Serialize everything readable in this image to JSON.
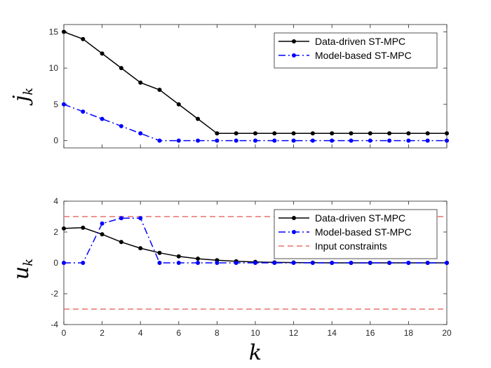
{
  "chart_data": [
    {
      "type": "line",
      "ylabel": "j",
      "ylabel_sub": "k",
      "xlim": [
        0,
        20
      ],
      "ylim": [
        -1,
        16
      ],
      "yticks": [
        0,
        5,
        10,
        15
      ],
      "yticklabels": [
        "0",
        "5",
        "10",
        "15"
      ],
      "xticks": [
        0,
        2,
        4,
        6,
        8,
        10,
        12,
        14,
        16,
        18,
        20
      ],
      "show_xticklabels": false,
      "grid": false,
      "legend_position": "top-right",
      "x": [
        0,
        1,
        2,
        3,
        4,
        5,
        6,
        7,
        8,
        9,
        10,
        11,
        12,
        13,
        14,
        15,
        16,
        17,
        18,
        19,
        20
      ],
      "series": [
        {
          "name": "Data-driven ST-MPC",
          "color": "#000000",
          "dash": "solid",
          "values": [
            15,
            14,
            12,
            10,
            8,
            7,
            5,
            3,
            1,
            1,
            1,
            1,
            1,
            1,
            1,
            1,
            1,
            1,
            1,
            1,
            1
          ]
        },
        {
          "name": "Model-based ST-MPC",
          "color": "#0000ff",
          "dash": "dashdot",
          "values": [
            5,
            4,
            3,
            2,
            1,
            0,
            0,
            0,
            0,
            0,
            0,
            0,
            0,
            0,
            0,
            0,
            0,
            0,
            0,
            0,
            0
          ]
        }
      ]
    },
    {
      "type": "line",
      "ylabel": "u",
      "ylabel_sub": "k",
      "xlabel": "k",
      "xlim": [
        0,
        20
      ],
      "ylim": [
        -4,
        4
      ],
      "yticks": [
        -4,
        -2,
        0,
        2,
        4
      ],
      "yticklabels": [
        "-4",
        "-2",
        "0",
        "2",
        "4"
      ],
      "xticks": [
        0,
        2,
        4,
        6,
        8,
        10,
        12,
        14,
        16,
        18,
        20
      ],
      "xticklabels": [
        "0",
        "2",
        "4",
        "6",
        "8",
        "10",
        "12",
        "14",
        "16",
        "18",
        "20"
      ],
      "show_xticklabels": true,
      "grid": false,
      "legend_position": "top-right",
      "x": [
        0,
        1,
        2,
        3,
        4,
        5,
        6,
        7,
        8,
        9,
        10,
        11,
        12,
        13,
        14,
        15,
        16,
        17,
        18,
        19,
        20
      ],
      "series": [
        {
          "name": "Data-driven ST-MPC",
          "color": "#000000",
          "dash": "solid",
          "values": [
            2.23,
            2.28,
            1.85,
            1.35,
            0.95,
            0.65,
            0.42,
            0.27,
            0.17,
            0.1,
            0.06,
            0.03,
            0.02,
            0.01,
            0.0,
            0.0,
            0.0,
            0.0,
            0.0,
            0.0,
            0.0
          ]
        },
        {
          "name": "Model-based ST-MPC",
          "color": "#0000ff",
          "dash": "dashdot",
          "values": [
            0,
            0,
            2.55,
            2.9,
            2.9,
            0,
            0,
            0,
            0,
            0,
            0,
            0,
            0,
            0,
            0,
            0,
            0,
            0,
            0,
            0,
            0
          ]
        }
      ],
      "constraint_lines": {
        "name": "Input constraints",
        "color": "#e8706a",
        "values": [
          3,
          -3
        ]
      }
    }
  ]
}
